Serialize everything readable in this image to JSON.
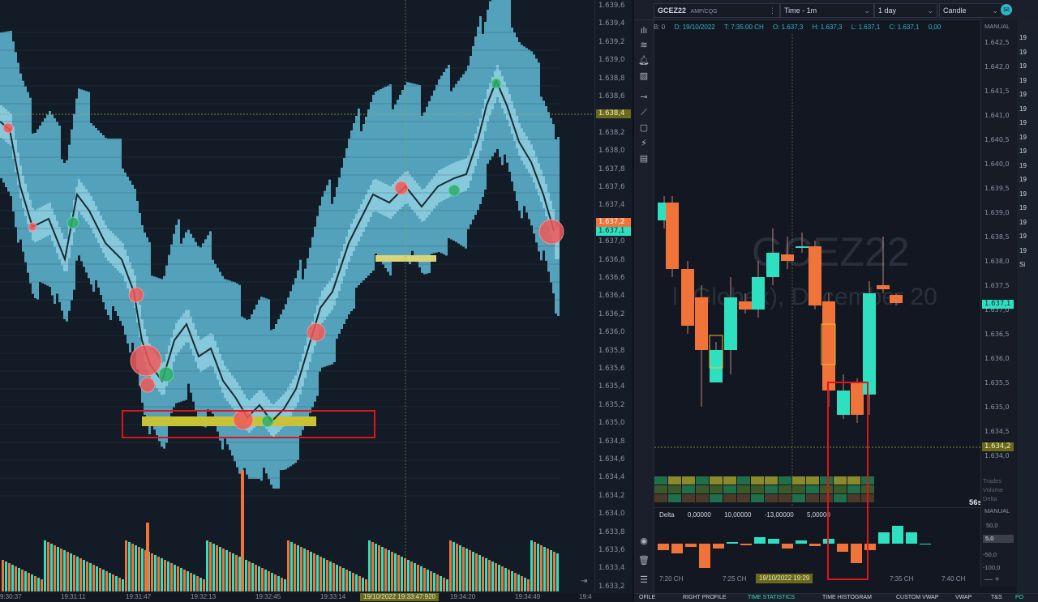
{
  "left_pane": {
    "price_ticks": [
      "1.639,6",
      "1.639,4",
      "1.639,2",
      "1.639,0",
      "1.638,8",
      "1.638,6",
      "1.638,4",
      "1.638,2",
      "1.638,0",
      "1.637,8",
      "1.637,6",
      "1.637,4",
      "1.637,2",
      "1.637,0",
      "1.636,8",
      "1.636,6",
      "1.636,4",
      "1.636,2",
      "1.636,0",
      "1.635,8",
      "1.635,6",
      "1.635,4",
      "1.635,2",
      "1.635,0",
      "1.634,8",
      "1.634,6",
      "1.634,4",
      "1.634,2",
      "1.634,0",
      "1.633,8",
      "1.633,6",
      "1.633,4",
      "1.633,2"
    ],
    "crosshair_price": "1.638,4",
    "ask_price": "1.637,2",
    "bid_price": "1.637,1",
    "time_labels": [
      "9:30:37",
      "19:31:11",
      "19:31:47",
      "19:32:13",
      "19:32:45",
      "19:33:14",
      "19:34:20",
      "19:34:49",
      "19:4"
    ],
    "time_selected": "19/10/2022 19:33:47:920",
    "colors": {
      "ask": "#f0743a",
      "bid": "#2fe0c0",
      "crosshair": "#a5a83a",
      "highlight": "#e0141c"
    }
  },
  "right_pane": {
    "symbol": "GCEZ22",
    "exchange": "AMP/CQG",
    "timeframe": "Time - 1m",
    "period": "1 day",
    "chart_type": "Candle",
    "ohlc": {
      "B": "B: 0",
      "D": "D: 19/10/2022",
      "T": "T: 7:35:00 CH",
      "O": "O: 1.637,3",
      "H": "H: 1.637,3",
      "L": "L: 1.637,1",
      "C": "C: 1.637,1",
      "extra": "0,00"
    },
    "watermark_symbol": "GCEZ22",
    "watermark_desc": "l (Globex), December 20",
    "axis_mode": "MANUAL",
    "price_ticks": [
      "1.642,5",
      "1.642,0",
      "1.641,5",
      "1.641,0",
      "1.640,5",
      "1.640,0",
      "1.639,5",
      "1.639,0",
      "1.638,5",
      "1.638,0",
      "1.637,5",
      "1.637,0",
      "1.636,5",
      "1.636,0",
      "1.635,5",
      "1.635,0",
      "1.634,5",
      "1.634,0"
    ],
    "last_price": "1.637,1",
    "crosshair_price": "1.634,2",
    "countdown": "56s",
    "cluster_labels": [
      "Trades",
      "Volume",
      "Delta"
    ],
    "delta": {
      "title": "Delta",
      "values": [
        "0,00000",
        "10,00000",
        "-13,00000",
        "5,00000"
      ],
      "axis_mode": "MANUAL",
      "axis_ticks": [
        "50,0",
        "5,0",
        "-50,0",
        "-100,0"
      ]
    },
    "time_labels": [
      "7:20 CH",
      "7:25 CH",
      "7:35 CH",
      "7:40 CH"
    ],
    "time_selected": "19/10/2022 19:29",
    "far_right": [
      "19",
      "19",
      "19",
      "19",
      "19",
      "19",
      "19",
      "19",
      "19",
      "19",
      "19",
      "19",
      "19",
      "19",
      "19",
      "19",
      "Si"
    ],
    "bottom_tabs": [
      "OFILE",
      "RIGHT PROFILE",
      "TIME STATISTICS",
      "TIME HISTOGRAM",
      "CUSTOM VWAP",
      "VWAP",
      "T&S",
      "PO"
    ],
    "colors": {
      "up": "#2fe0c0",
      "down": "#f0743a",
      "highlight": "#e0141c"
    }
  }
}
